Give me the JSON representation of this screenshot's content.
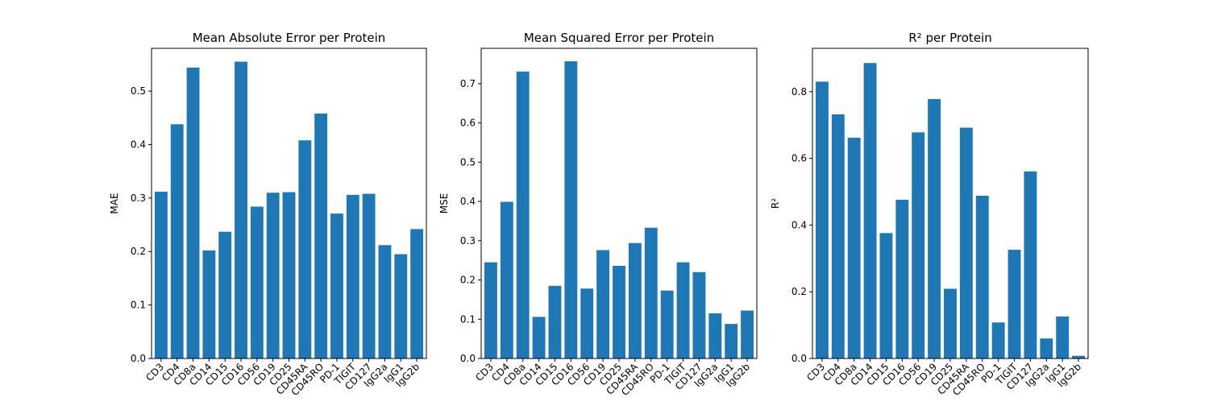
{
  "chart_data": [
    {
      "type": "bar",
      "title": "Mean Absolute Error per Protein",
      "xlabel": "",
      "ylabel": "MAE",
      "ylim": [
        0,
        0.58
      ],
      "yticks": [
        "0.0",
        "0.1",
        "0.2",
        "0.3",
        "0.4",
        "0.5"
      ],
      "categories": [
        "CD3",
        "CD4",
        "CD8a",
        "CD14",
        "CD15",
        "CD16",
        "CD56",
        "CD19",
        "CD25",
        "CD45RA",
        "CD45RO",
        "PD-1",
        "TIGIT",
        "CD127",
        "IgG2a",
        "IgG1",
        "IgG2b"
      ],
      "values": [
        0.312,
        0.438,
        0.544,
        0.202,
        0.237,
        0.555,
        0.284,
        0.31,
        0.311,
        0.408,
        0.458,
        0.271,
        0.306,
        0.308,
        0.212,
        0.195,
        0.242
      ]
    },
    {
      "type": "bar",
      "title": "Mean Squared Error per Protein",
      "xlabel": "",
      "ylabel": "MSE",
      "ylim": [
        0,
        0.79
      ],
      "yticks": [
        "0.0",
        "0.1",
        "0.2",
        "0.3",
        "0.4",
        "0.5",
        "0.6",
        "0.7"
      ],
      "categories": [
        "CD3",
        "CD4",
        "CD8a",
        "CD14",
        "CD15",
        "CD16",
        "CD56",
        "CD19",
        "CD25",
        "CD45RA",
        "CD45RO",
        "PD-1",
        "TIGIT",
        "CD127",
        "IgG2a",
        "IgG1",
        "IgG2b"
      ],
      "values": [
        0.245,
        0.399,
        0.731,
        0.106,
        0.185,
        0.757,
        0.178,
        0.276,
        0.236,
        0.294,
        0.333,
        0.173,
        0.245,
        0.22,
        0.115,
        0.088,
        0.122
      ]
    },
    {
      "type": "bar",
      "title": "R² per Protein",
      "xlabel": "",
      "ylabel": "R²",
      "ylim": [
        0,
        0.93
      ],
      "yticks": [
        "0.0",
        "0.2",
        "0.4",
        "0.6",
        "0.8"
      ],
      "categories": [
        "CD3",
        "CD4",
        "CD8a",
        "CD14",
        "CD15",
        "CD16",
        "CD56",
        "CD19",
        "CD25",
        "CD45RA",
        "CD45RO",
        "PD-1",
        "TIGIT",
        "CD127",
        "IgG2a",
        "IgG1",
        "IgG2b"
      ],
      "values": [
        0.83,
        0.732,
        0.662,
        0.886,
        0.376,
        0.476,
        0.678,
        0.778,
        0.209,
        0.692,
        0.488,
        0.108,
        0.326,
        0.561,
        0.06,
        0.126,
        0.008
      ]
    }
  ]
}
